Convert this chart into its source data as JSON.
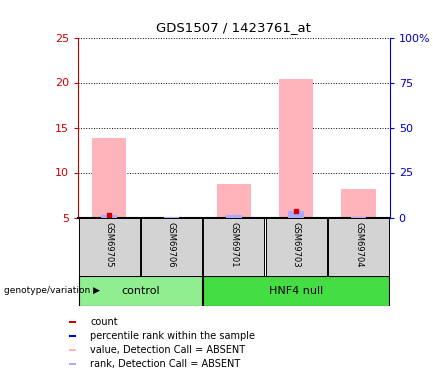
{
  "title": "GDS1507 / 1423761_at",
  "samples": [
    "GSM69705",
    "GSM69706",
    "GSM69701",
    "GSM69703",
    "GSM69704"
  ],
  "groups": [
    {
      "name": "control",
      "indices": [
        0,
        1
      ],
      "color": "#90ee90"
    },
    {
      "name": "HNF4 null",
      "indices": [
        2,
        3,
        4
      ],
      "color": "#44dd44"
    }
  ],
  "pink_bars": [
    13.8,
    0.0,
    8.7,
    20.4,
    8.2
  ],
  "blue_bars": [
    5.3,
    5.1,
    5.3,
    5.7,
    5.1
  ],
  "has_red_dot": [
    true,
    false,
    false,
    true,
    false
  ],
  "red_dot_vals": [
    5.3,
    0,
    0,
    5.7,
    0
  ],
  "ylim_left": [
    5,
    25
  ],
  "ylim_right": [
    0,
    100
  ],
  "yticks_left": [
    5,
    10,
    15,
    20,
    25
  ],
  "yticks_right": [
    0,
    25,
    50,
    75,
    100
  ],
  "ytick_labels_left": [
    "5",
    "10",
    "15",
    "20",
    "25"
  ],
  "ytick_labels_right": [
    "0",
    "25",
    "50",
    "75",
    "100%"
  ],
  "left_axis_color": "#cc0000",
  "right_axis_color": "#0000cc",
  "pink_color": "#ffb3ba",
  "blue_color": "#aaaaff",
  "red_color": "#cc0000",
  "sample_box_color": "#d3d3d3",
  "legend_items": [
    {
      "color": "#cc0000",
      "label": "count"
    },
    {
      "color": "#0000cc",
      "label": "percentile rank within the sample"
    },
    {
      "color": "#ffb3ba",
      "label": "value, Detection Call = ABSENT"
    },
    {
      "color": "#aaaaff",
      "label": "rank, Detection Call = ABSENT"
    }
  ],
  "genotype_label": "genotype/variation"
}
